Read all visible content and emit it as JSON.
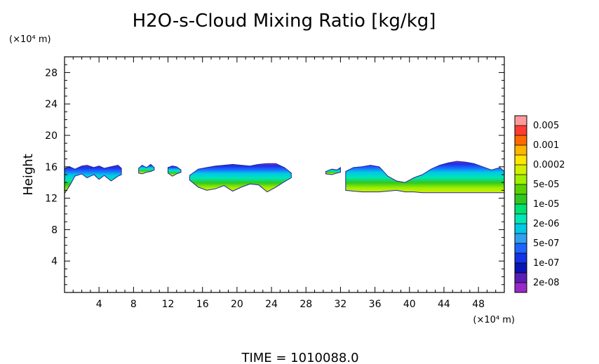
{
  "chart_data": {
    "type": "heatmap",
    "title": "H2O-s-Cloud Mixing Ratio [kg/kg]",
    "ylabel": "Height",
    "x_unit": "(×10⁴ m)",
    "y_unit": "(×10⁴ m)",
    "xlim": [
      0,
      51
    ],
    "ylim": [
      0,
      30
    ],
    "x_ticks": [
      4,
      8,
      12,
      16,
      20,
      24,
      28,
      32,
      36,
      40,
      44,
      48
    ],
    "y_ticks": [
      4,
      8,
      12,
      16,
      20,
      24,
      28
    ],
    "footer": "TIME =  1010088.0",
    "colorbar": {
      "labels": [
        "0.005",
        "0.001",
        "0.0002",
        "5e-05",
        "1e-05",
        "2e-06",
        "5e-07",
        "1e-07",
        "2e-08"
      ],
      "colors": [
        "#ff9a9a",
        "#ff3c32",
        "#ff6a00",
        "#ffb400",
        "#ffe600",
        "#d2f000",
        "#a0f000",
        "#5ad200",
        "#30c820",
        "#00e070",
        "#00e6b4",
        "#00c8e6",
        "#32a0f0",
        "#1e64ff",
        "#1432e6",
        "#0a14b4",
        "#5a1eb4",
        "#9a28c8"
      ]
    },
    "cloud_regions": [
      {
        "x": [
          0.0,
          0.6,
          1.2,
          2.0,
          2.6,
          3.4,
          4.0,
          4.6,
          5.4,
          6.2,
          6.6
        ],
        "top": [
          15.8,
          16.0,
          15.7,
          16.1,
          16.2,
          15.9,
          16.1,
          15.8,
          16.0,
          16.2,
          15.8
        ],
        "bottom": [
          12.6,
          13.6,
          14.8,
          15.1,
          14.6,
          15.0,
          14.4,
          14.9,
          14.2,
          14.8,
          15.0
        ]
      },
      {
        "x": [
          8.6,
          9.0,
          9.5,
          10.0,
          10.4
        ],
        "top": [
          15.8,
          16.2,
          15.9,
          16.3,
          15.9
        ],
        "bottom": [
          15.2,
          15.1,
          15.3,
          15.4,
          15.6
        ]
      },
      {
        "x": [
          12.0,
          12.5,
          13.0,
          13.5
        ],
        "top": [
          15.9,
          16.1,
          16.0,
          15.6
        ],
        "bottom": [
          15.2,
          14.8,
          15.1,
          15.3
        ]
      },
      {
        "x": [
          14.5,
          15.5,
          16.5,
          17.5,
          18.5,
          19.5,
          20.5,
          21.5,
          22.5,
          23.5,
          24.5,
          25.5,
          26.3
        ],
        "top": [
          14.9,
          15.7,
          15.9,
          16.1,
          16.2,
          16.3,
          16.2,
          16.1,
          16.3,
          16.4,
          16.4,
          15.9,
          15.2
        ],
        "bottom": [
          14.3,
          13.4,
          13.0,
          13.2,
          13.6,
          12.9,
          13.4,
          13.8,
          13.7,
          12.8,
          13.4,
          14.1,
          14.6
        ]
      },
      {
        "x": [
          30.3,
          31.0,
          31.6,
          32.0
        ],
        "top": [
          15.4,
          15.7,
          15.6,
          15.9
        ],
        "bottom": [
          15.1,
          15.0,
          15.2,
          15.3
        ]
      },
      {
        "x": [
          32.6,
          33.5,
          34.5,
          35.5,
          36.5,
          37.5,
          38.5,
          39.5,
          40.5,
          41.5,
          42.5,
          43.5,
          44.5,
          45.5,
          46.5,
          47.5,
          48.5,
          49.5,
          50.5,
          51.0
        ],
        "top": [
          15.4,
          15.9,
          16.0,
          16.2,
          16.0,
          14.8,
          14.2,
          14.0,
          14.6,
          15.0,
          15.7,
          16.2,
          16.5,
          16.7,
          16.6,
          16.4,
          16.0,
          15.6,
          15.9,
          15.4
        ],
        "bottom": [
          13.0,
          12.9,
          12.8,
          12.8,
          12.8,
          12.9,
          13.0,
          12.8,
          12.8,
          12.7,
          12.7,
          12.7,
          12.7,
          12.7,
          12.7,
          12.7,
          12.7,
          12.7,
          12.7,
          12.7
        ]
      }
    ]
  }
}
